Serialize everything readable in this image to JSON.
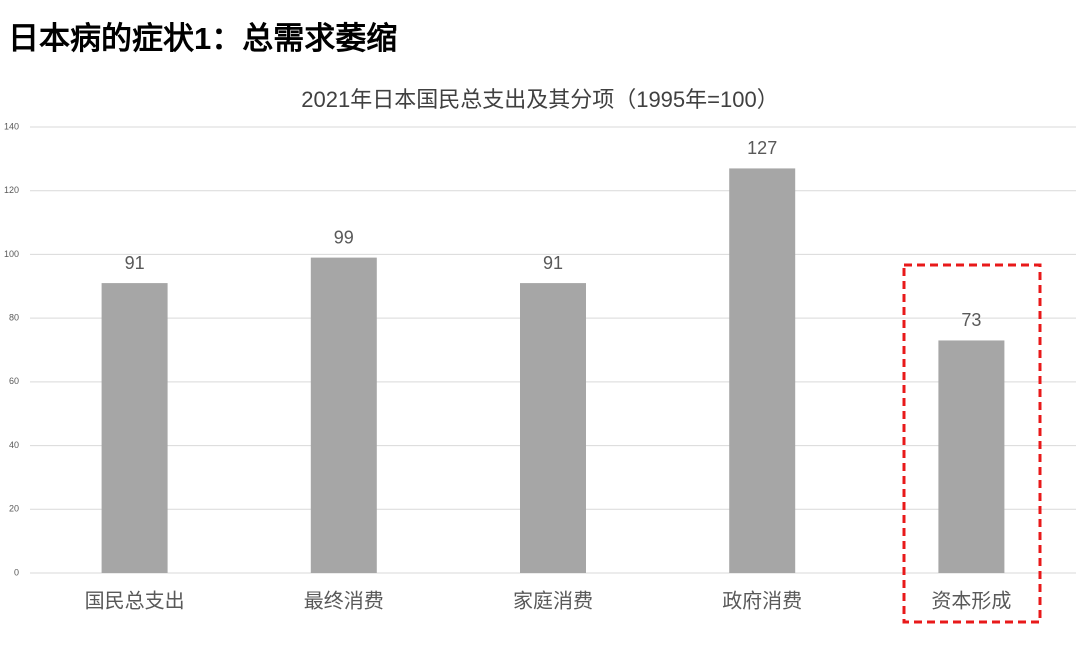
{
  "page_title": "日本病的症状1：总需求萎缩",
  "chart_data": {
    "type": "bar",
    "title": "2021年日本国民总支出及其分项（1995年=100）",
    "categories": [
      "国民总支出",
      "最终消费",
      "家庭消费",
      "政府消费",
      "资本形成"
    ],
    "values": [
      91,
      99,
      91,
      127,
      73
    ],
    "color": "#a6a6a6",
    "ylim": [
      0,
      140
    ],
    "yticks": [
      0,
      20,
      40,
      60,
      80,
      100,
      120,
      140
    ],
    "grid": true
  }
}
